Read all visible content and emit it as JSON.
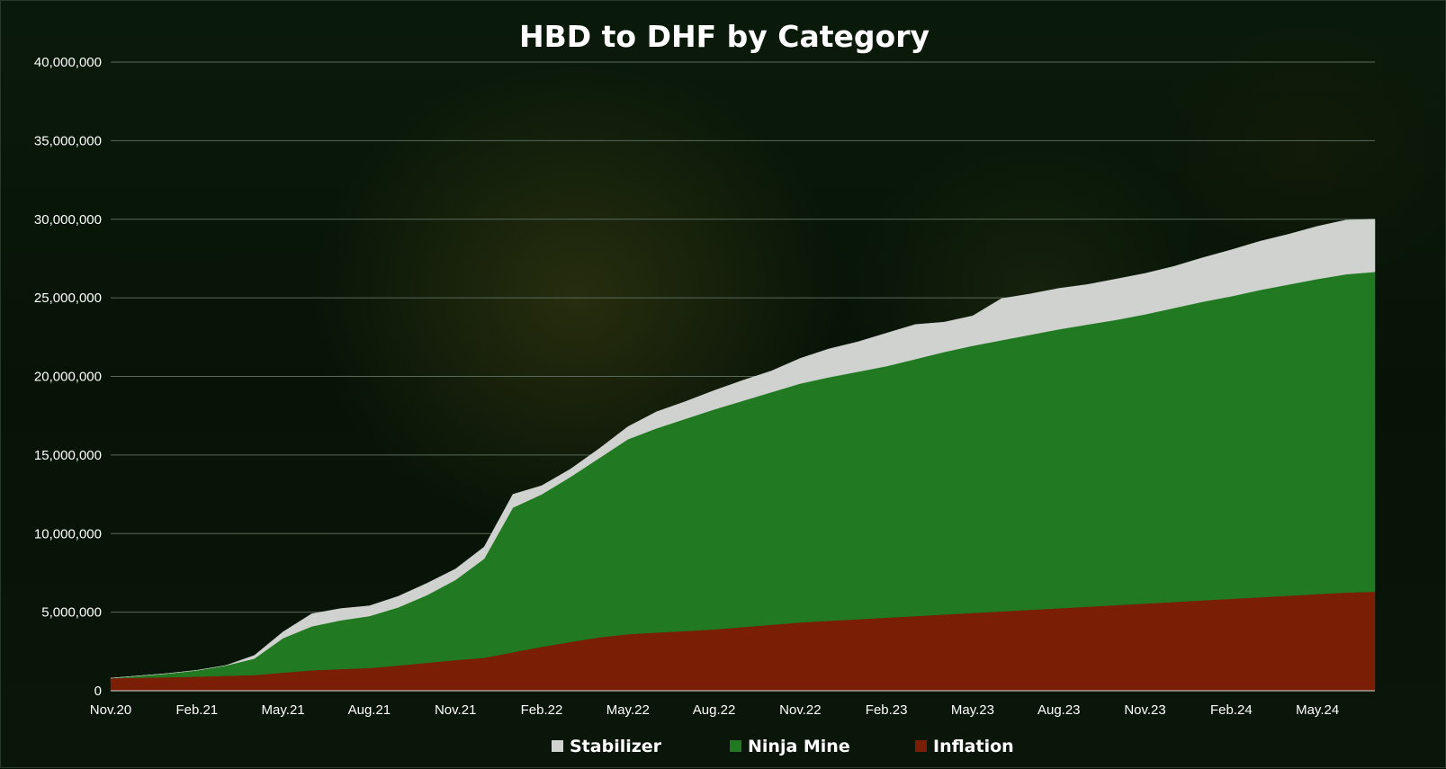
{
  "chart_data": {
    "type": "area",
    "stacked": true,
    "title": "HBD to DHF by Category",
    "xlabel": "",
    "ylabel": "",
    "ylim": [
      0,
      40000000
    ],
    "y_ticks": [
      0,
      5000000,
      10000000,
      15000000,
      20000000,
      25000000,
      30000000,
      35000000,
      40000000
    ],
    "y_tick_labels": [
      "0",
      "5,000,000",
      "10,000,000",
      "15,000,000",
      "20,000,000",
      "25,000,000",
      "30,000,000",
      "35,000,000",
      "40,000,000"
    ],
    "x_ticks": [
      "Nov.20",
      "Feb.21",
      "May.21",
      "Aug.21",
      "Nov.21",
      "Feb.22",
      "May.22",
      "Aug.22",
      "Nov.22",
      "Feb.23",
      "May.23",
      "Aug.23",
      "Nov.23",
      "Feb.24",
      "May.24"
    ],
    "x": [
      "Nov.20",
      "Dec.20",
      "Jan.21",
      "Feb.21",
      "Mar.21",
      "Apr.21",
      "May.21",
      "Jun.21",
      "Jul.21",
      "Aug.21",
      "Sep.21",
      "Oct.21",
      "Nov.21",
      "Dec.21",
      "Jan.22",
      "Feb.22",
      "Mar.22",
      "Apr.22",
      "May.22",
      "Jun.22",
      "Jul.22",
      "Aug.22",
      "Sep.22",
      "Oct.22",
      "Nov.22",
      "Dec.22",
      "Jan.23",
      "Feb.23",
      "Mar.23",
      "Apr.23",
      "May.23",
      "Jun.23",
      "Jul.23",
      "Aug.23",
      "Sep.23",
      "Oct.23",
      "Nov.23",
      "Dec.23",
      "Jan.24",
      "Feb.24",
      "Mar.24",
      "Apr.24",
      "May.24",
      "Jun.24",
      "Jul.24"
    ],
    "series": [
      {
        "name": "Inflation",
        "color": "#7a1e06",
        "values": [
          800000,
          830000,
          860000,
          900000,
          950000,
          1000000,
          1150000,
          1300000,
          1380000,
          1450000,
          1600000,
          1780000,
          1950000,
          2100000,
          2450000,
          2800000,
          3100000,
          3400000,
          3600000,
          3700000,
          3800000,
          3900000,
          4050000,
          4200000,
          4350000,
          4450000,
          4550000,
          4650000,
          4750000,
          4850000,
          4950000,
          5050000,
          5150000,
          5250000,
          5350000,
          5450000,
          5550000,
          5650000,
          5750000,
          5850000,
          5950000,
          6050000,
          6150000,
          6250000,
          6300000
        ]
      },
      {
        "name": "Ninja Mine",
        "color": "#217a21",
        "values": [
          0,
          120000,
          240000,
          400000,
          650000,
          1050000,
          2200000,
          2800000,
          3100000,
          3300000,
          3700000,
          4300000,
          5100000,
          6300000,
          9200000,
          9700000,
          10500000,
          11400000,
          12400000,
          13000000,
          13500000,
          14000000,
          14400000,
          14800000,
          15200000,
          15500000,
          15750000,
          16000000,
          16350000,
          16700000,
          17000000,
          17250000,
          17500000,
          17750000,
          17950000,
          18150000,
          18400000,
          18700000,
          19000000,
          19250000,
          19550000,
          19800000,
          20050000,
          20250000,
          20350000
        ]
      },
      {
        "name": "Stabilizer",
        "color": "#cfd2cf",
        "values": [
          0,
          0,
          0,
          0,
          0,
          200000,
          400000,
          800000,
          750000,
          650000,
          700000,
          750000,
          700000,
          750000,
          850000,
          550000,
          500000,
          600000,
          800000,
          1050000,
          1100000,
          1200000,
          1300000,
          1350000,
          1600000,
          1800000,
          1900000,
          2100000,
          2200000,
          1900000,
          1900000,
          2650000,
          2600000,
          2600000,
          2550000,
          2600000,
          2600000,
          2650000,
          2800000,
          2950000,
          3100000,
          3200000,
          3350000,
          3450000,
          3350000
        ]
      }
    ],
    "legend": {
      "position": "bottom",
      "items": [
        "Stabilizer",
        "Ninja Mine",
        "Inflation"
      ]
    },
    "grid": {
      "y": true,
      "x": false,
      "color": "#5a6a5a"
    }
  }
}
